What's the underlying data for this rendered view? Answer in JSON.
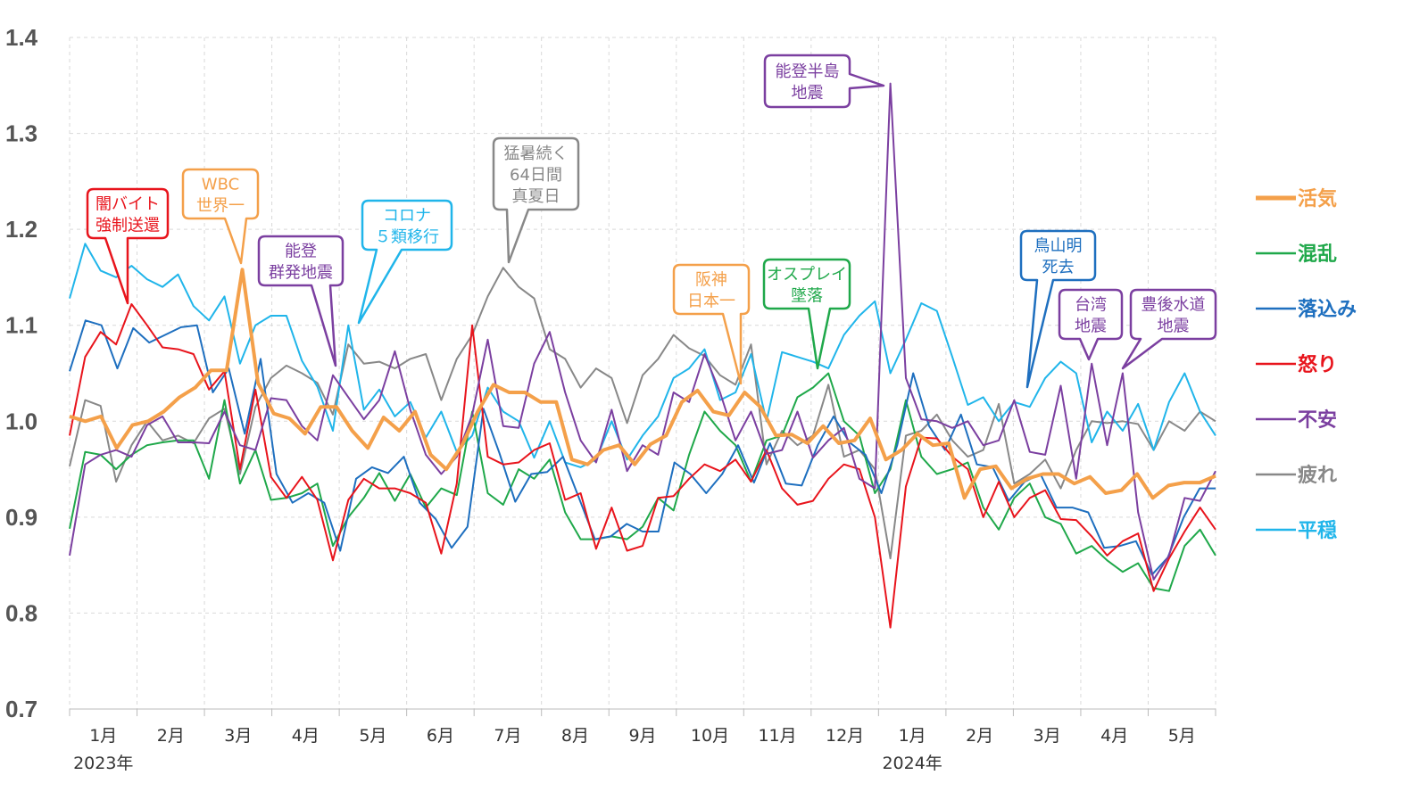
{
  "chart_data": {
    "type": "line",
    "title": "",
    "xlabel": "",
    "ylabel": "",
    "ylim": [
      0.7,
      1.4
    ],
    "yticks": [
      "0.7",
      "0.8",
      "0.9",
      "1.0",
      "1.1",
      "1.2",
      "1.3",
      "1.4"
    ],
    "grid": true,
    "legend_position": "right",
    "months": [
      "1月",
      "2月",
      "3月",
      "4月",
      "5月",
      "6月",
      "7月",
      "8月",
      "9月",
      "10月",
      "11月",
      "12月",
      "1月",
      "2月",
      "3月",
      "4月",
      "5月"
    ],
    "years": [
      "2023年",
      "2024年"
    ],
    "series": [
      {
        "name": "活気",
        "color": "#f4a04a",
        "width": 4,
        "values": [
          1.005,
          1.0,
          1.005,
          0.972,
          0.996,
          1.0,
          1.01,
          1.025,
          1.035,
          1.053,
          1.053,
          1.158,
          1.04,
          1.008,
          1.003,
          0.987,
          1.015,
          1.015,
          0.99,
          0.972,
          1.004,
          0.99,
          1.01,
          0.965,
          0.95,
          0.975,
          1.01,
          1.038,
          1.03,
          1.03,
          1.02,
          1.02,
          0.96,
          0.955,
          0.97,
          0.975,
          0.955,
          0.976,
          0.985,
          1.02,
          1.032,
          1.01,
          1.006,
          1.03,
          1.015,
          0.985,
          0.986,
          0.977,
          0.995,
          0.977,
          0.98,
          1.003,
          0.96,
          0.97,
          0.987,
          0.975,
          0.977,
          0.92,
          0.95,
          0.953,
          0.93,
          0.94,
          0.945,
          0.945,
          0.935,
          0.942,
          0.925,
          0.928,
          0.945,
          0.92,
          0.933,
          0.936,
          0.936,
          0.943
        ]
      },
      {
        "name": "混乱",
        "color": "#1fa84a",
        "width": 2,
        "values": [
          0.888,
          0.968,
          0.965,
          0.95,
          0.965,
          0.975,
          0.978,
          0.98,
          0.98,
          0.94,
          1.022,
          0.935,
          0.97,
          0.918,
          0.92,
          0.925,
          0.935,
          0.87,
          0.9,
          0.92,
          0.946,
          0.917,
          0.945,
          0.91,
          0.93,
          0.923,
          1.01,
          0.925,
          0.913,
          0.95,
          0.94,
          0.96,
          0.905,
          0.877,
          0.877,
          0.88,
          0.877,
          0.89,
          0.92,
          0.907,
          0.965,
          1.01,
          0.99,
          0.975,
          0.937,
          0.98,
          0.985,
          1.025,
          1.035,
          1.05,
          1.0,
          0.985,
          0.925,
          0.95,
          1.022,
          0.963,
          0.945,
          0.95,
          0.957,
          0.91,
          0.887,
          0.92,
          0.935,
          0.9,
          0.893,
          0.862,
          0.87,
          0.855,
          0.843,
          0.852,
          0.826,
          0.823,
          0.87,
          0.887,
          0.86
        ]
      },
      {
        "name": "落込み",
        "color": "#1e6fbf",
        "width": 2,
        "values": [
          1.052,
          1.105,
          1.1,
          1.055,
          1.097,
          1.082,
          1.09,
          1.098,
          1.1,
          1.03,
          1.055,
          0.987,
          1.065,
          0.945,
          0.915,
          0.925,
          0.915,
          0.865,
          0.94,
          0.952,
          0.946,
          0.963,
          0.915,
          0.898,
          0.868,
          0.89,
          1.013,
          0.967,
          0.916,
          0.945,
          0.947,
          0.963,
          0.92,
          0.877,
          0.88,
          0.893,
          0.885,
          0.885,
          0.957,
          0.945,
          0.925,
          0.945,
          0.975,
          0.936,
          0.977,
          0.935,
          0.933,
          0.975,
          1.005,
          0.978,
          0.965,
          0.925,
          0.975,
          1.05,
          0.995,
          0.97,
          1.007,
          0.955,
          0.952,
          0.917,
          0.937,
          0.945,
          0.91,
          0.91,
          0.905,
          0.868,
          0.87,
          0.875,
          0.84,
          0.858,
          0.9,
          0.93,
          0.93
        ]
      },
      {
        "name": "怒り",
        "color": "#e8141c",
        "width": 2,
        "values": [
          0.985,
          1.067,
          1.093,
          1.08,
          1.122,
          1.1,
          1.077,
          1.075,
          1.07,
          1.033,
          1.052,
          0.95,
          1.033,
          0.942,
          0.92,
          0.942,
          0.918,
          0.855,
          0.918,
          0.94,
          0.93,
          0.93,
          0.925,
          0.915,
          0.862,
          0.935,
          1.1,
          0.963,
          0.955,
          0.957,
          0.97,
          0.977,
          0.918,
          0.925,
          0.867,
          0.91,
          0.865,
          0.87,
          0.92,
          0.922,
          0.94,
          0.955,
          0.948,
          0.96,
          0.937,
          0.97,
          0.93,
          0.913,
          0.917,
          0.94,
          0.955,
          0.95,
          0.9,
          0.785,
          0.932,
          0.983,
          0.982,
          0.963,
          0.95,
          0.9,
          0.937,
          0.9,
          0.92,
          0.928,
          0.898,
          0.897,
          0.88,
          0.86,
          0.875,
          0.883,
          0.823,
          0.857,
          0.885,
          0.91,
          0.887
        ]
      },
      {
        "name": "不安",
        "color": "#7b3fa0",
        "width": 2,
        "values": [
          0.86,
          0.955,
          0.965,
          0.97,
          0.963,
          0.996,
          1.005,
          0.978,
          0.978,
          0.977,
          1.01,
          0.975,
          0.97,
          1.024,
          1.022,
          0.995,
          0.98,
          1.048,
          1.025,
          1.002,
          1.022,
          1.073,
          1.012,
          0.965,
          0.945,
          0.963,
          1.007,
          1.085,
          0.995,
          0.993,
          1.06,
          1.093,
          1.03,
          0.98,
          0.957,
          1.012,
          0.948,
          0.975,
          0.965,
          1.03,
          1.02,
          1.07,
          1.03,
          0.98,
          1.01,
          0.966,
          0.97,
          1.01,
          0.962,
          0.98,
          0.993,
          0.94,
          0.93,
          1.352,
          1.045,
          1.002,
          1.0,
          0.993,
          1.0,
          0.975,
          0.98,
          1.022,
          0.968,
          0.965,
          1.037,
          0.94,
          1.06,
          0.975,
          1.05,
          0.905,
          0.835,
          0.86,
          0.92,
          0.917,
          0.948
        ]
      },
      {
        "name": "疲れ",
        "color": "#888888",
        "width": 2,
        "values": [
          0.953,
          1.022,
          1.016,
          0.937,
          0.975,
          1.0,
          0.98,
          0.985,
          0.977,
          1.003,
          1.013,
          0.945,
          1.015,
          1.045,
          1.058,
          1.05,
          1.04,
          1.007,
          1.08,
          1.06,
          1.062,
          1.055,
          1.065,
          1.07,
          1.022,
          1.065,
          1.09,
          1.13,
          1.16,
          1.14,
          1.128,
          1.075,
          1.065,
          1.035,
          1.055,
          1.045,
          0.998,
          1.048,
          1.065,
          1.09,
          1.076,
          1.068,
          1.048,
          1.038,
          1.08,
          0.955,
          0.99,
          0.975,
          0.985,
          1.038,
          0.963,
          0.97,
          0.95,
          0.857,
          0.985,
          0.99,
          1.007,
          0.98,
          0.963,
          0.97,
          1.018,
          0.935,
          0.945,
          0.96,
          0.93,
          0.97,
          1.0,
          0.998,
          1.0,
          0.997,
          0.97,
          1.0,
          0.99,
          1.01,
          1.0
        ]
      },
      {
        "name": "平穏",
        "color": "#20b5ea",
        "width": 2,
        "values": [
          1.128,
          1.185,
          1.157,
          1.15,
          1.162,
          1.148,
          1.14,
          1.153,
          1.12,
          1.105,
          1.13,
          1.06,
          1.1,
          1.11,
          1.11,
          1.063,
          1.036,
          0.99,
          1.1,
          1.012,
          1.033,
          1.005,
          1.02,
          0.983,
          1.01,
          0.968,
          0.985,
          1.035,
          1.01,
          1.0,
          0.962,
          1.0,
          0.957,
          0.952,
          0.96,
          1.0,
          0.96,
          0.985,
          1.005,
          1.045,
          1.055,
          1.075,
          1.022,
          1.03,
          1.07,
          1.0,
          1.072,
          1.067,
          1.062,
          1.055,
          1.09,
          1.11,
          1.125,
          1.05,
          1.085,
          1.123,
          1.115,
          1.067,
          1.017,
          1.025,
          1.0,
          1.02,
          1.015,
          1.045,
          1.062,
          1.05,
          0.978,
          1.01,
          0.99,
          1.018,
          0.97,
          1.02,
          1.05,
          1.01,
          0.985
        ]
      }
    ],
    "annotations": [
      {
        "lines": [
          "闇バイト",
          "強制送還"
        ],
        "color": "#e8141c"
      },
      {
        "lines": [
          "WBC",
          "世界一"
        ],
        "color": "#f4a04a"
      },
      {
        "lines": [
          "能登",
          "群発地震"
        ],
        "color": "#7b3fa0"
      },
      {
        "lines": [
          "コロナ",
          "５類移行"
        ],
        "color": "#20b5ea"
      },
      {
        "lines": [
          "猛暑続く",
          "64日間",
          "真夏日"
        ],
        "color": "#888888"
      },
      {
        "lines": [
          "阪神",
          "日本一"
        ],
        "color": "#f4a04a"
      },
      {
        "lines": [
          "オスプレイ",
          "墜落"
        ],
        "color": "#1fa84a"
      },
      {
        "lines": [
          "能登半島",
          "地震"
        ],
        "color": "#7b3fa0"
      },
      {
        "lines": [
          "鳥山明",
          "死去"
        ],
        "color": "#1e6fbf"
      },
      {
        "lines": [
          "台湾",
          "地震"
        ],
        "color": "#7b3fa0"
      },
      {
        "lines": [
          "豊後水道",
          "地震"
        ],
        "color": "#7b3fa0"
      }
    ]
  }
}
